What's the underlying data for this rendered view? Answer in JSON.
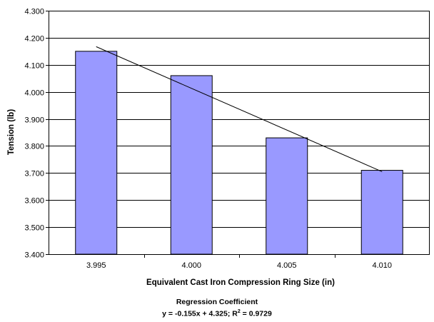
{
  "chart_data": {
    "type": "bar",
    "categories": [
      "3.995",
      "4.000",
      "4.005",
      "4.010"
    ],
    "values": [
      4.15,
      4.06,
      3.83,
      3.71
    ],
    "xlabel": "Equivalent Cast Iron Compression Ring Size (in)",
    "ylabel": "Tension (lb)",
    "ylim": [
      3.4,
      4.3
    ],
    "yticks": [
      "3.400",
      "3.500",
      "3.600",
      "3.700",
      "3.800",
      "3.900",
      "4.000",
      "4.100",
      "4.200",
      "4.300"
    ],
    "grid": true,
    "bar_color": "#9999ff",
    "trendline": {
      "type": "linear",
      "slope": -0.155,
      "intercept": 4.325,
      "start": 4.167,
      "end": 3.705,
      "color": "#000000"
    },
    "annotation": {
      "title": "Regression Coefficient",
      "equation": "y = -0.155x + 4.325; R",
      "superscript": "2",
      "equation_tail": " = 0.9729"
    }
  }
}
